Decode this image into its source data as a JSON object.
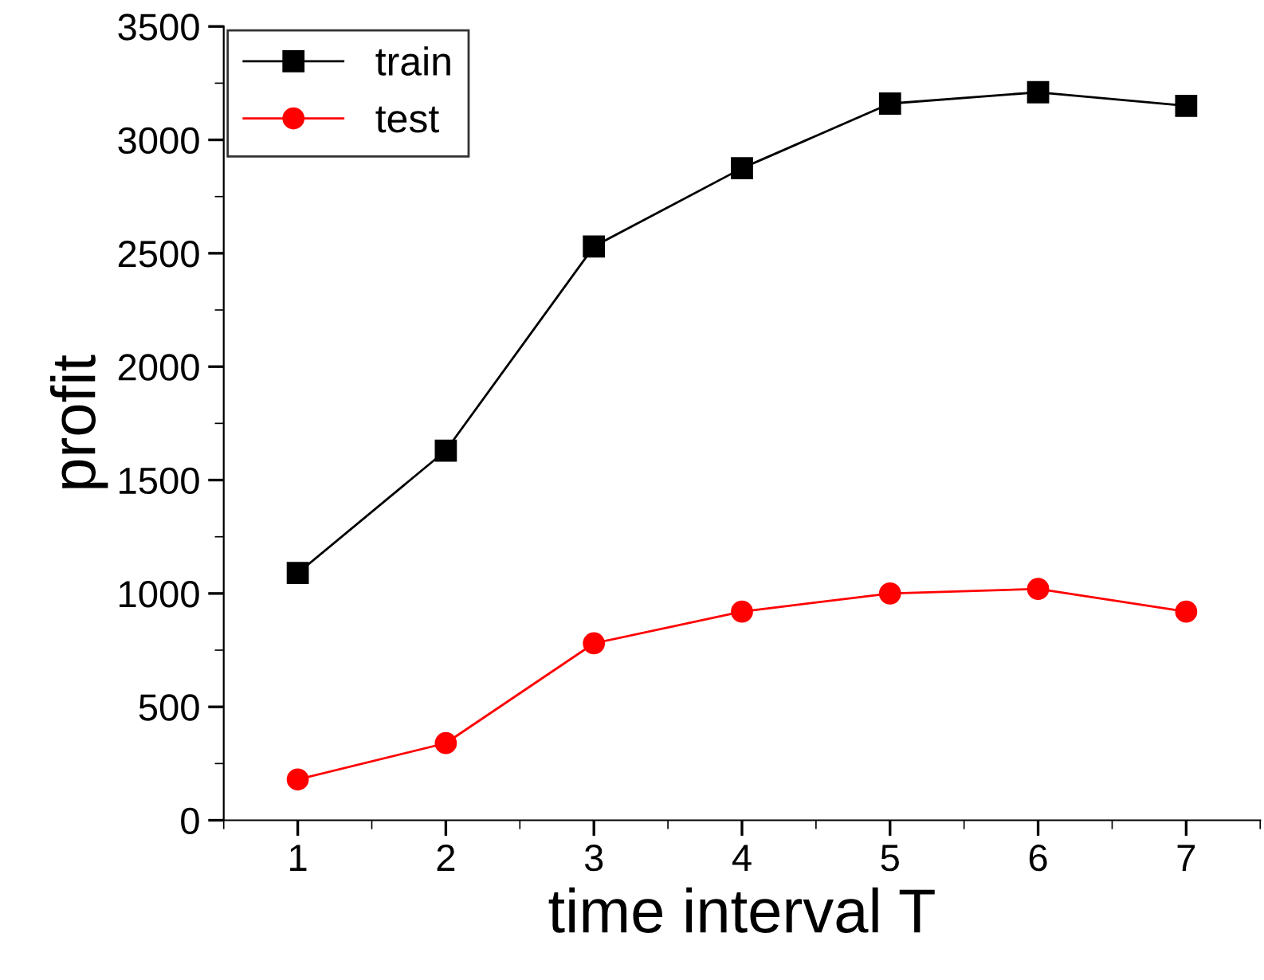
{
  "chart_data": {
    "type": "line",
    "xlabel": "time interval T",
    "ylabel": "profit",
    "x": [
      1,
      2,
      3,
      4,
      5,
      6,
      7
    ],
    "series": [
      {
        "name": "train",
        "color": "#000000",
        "marker": "square",
        "values": [
          1090,
          1630,
          2530,
          2875,
          3160,
          3210,
          3150
        ]
      },
      {
        "name": "test",
        "color": "#ff0000",
        "marker": "circle",
        "values": [
          180,
          340,
          780,
          920,
          1000,
          1020,
          920
        ]
      }
    ],
    "xlim": [
      0.5,
      7.5
    ],
    "xticks": [
      1,
      2,
      3,
      4,
      5,
      6,
      7
    ],
    "ylim": [
      0,
      3500
    ],
    "yticks": [
      0,
      500,
      1000,
      1500,
      2000,
      2500,
      3000,
      3500
    ],
    "grid": false,
    "legend": "top left",
    "line_style": "solid"
  }
}
